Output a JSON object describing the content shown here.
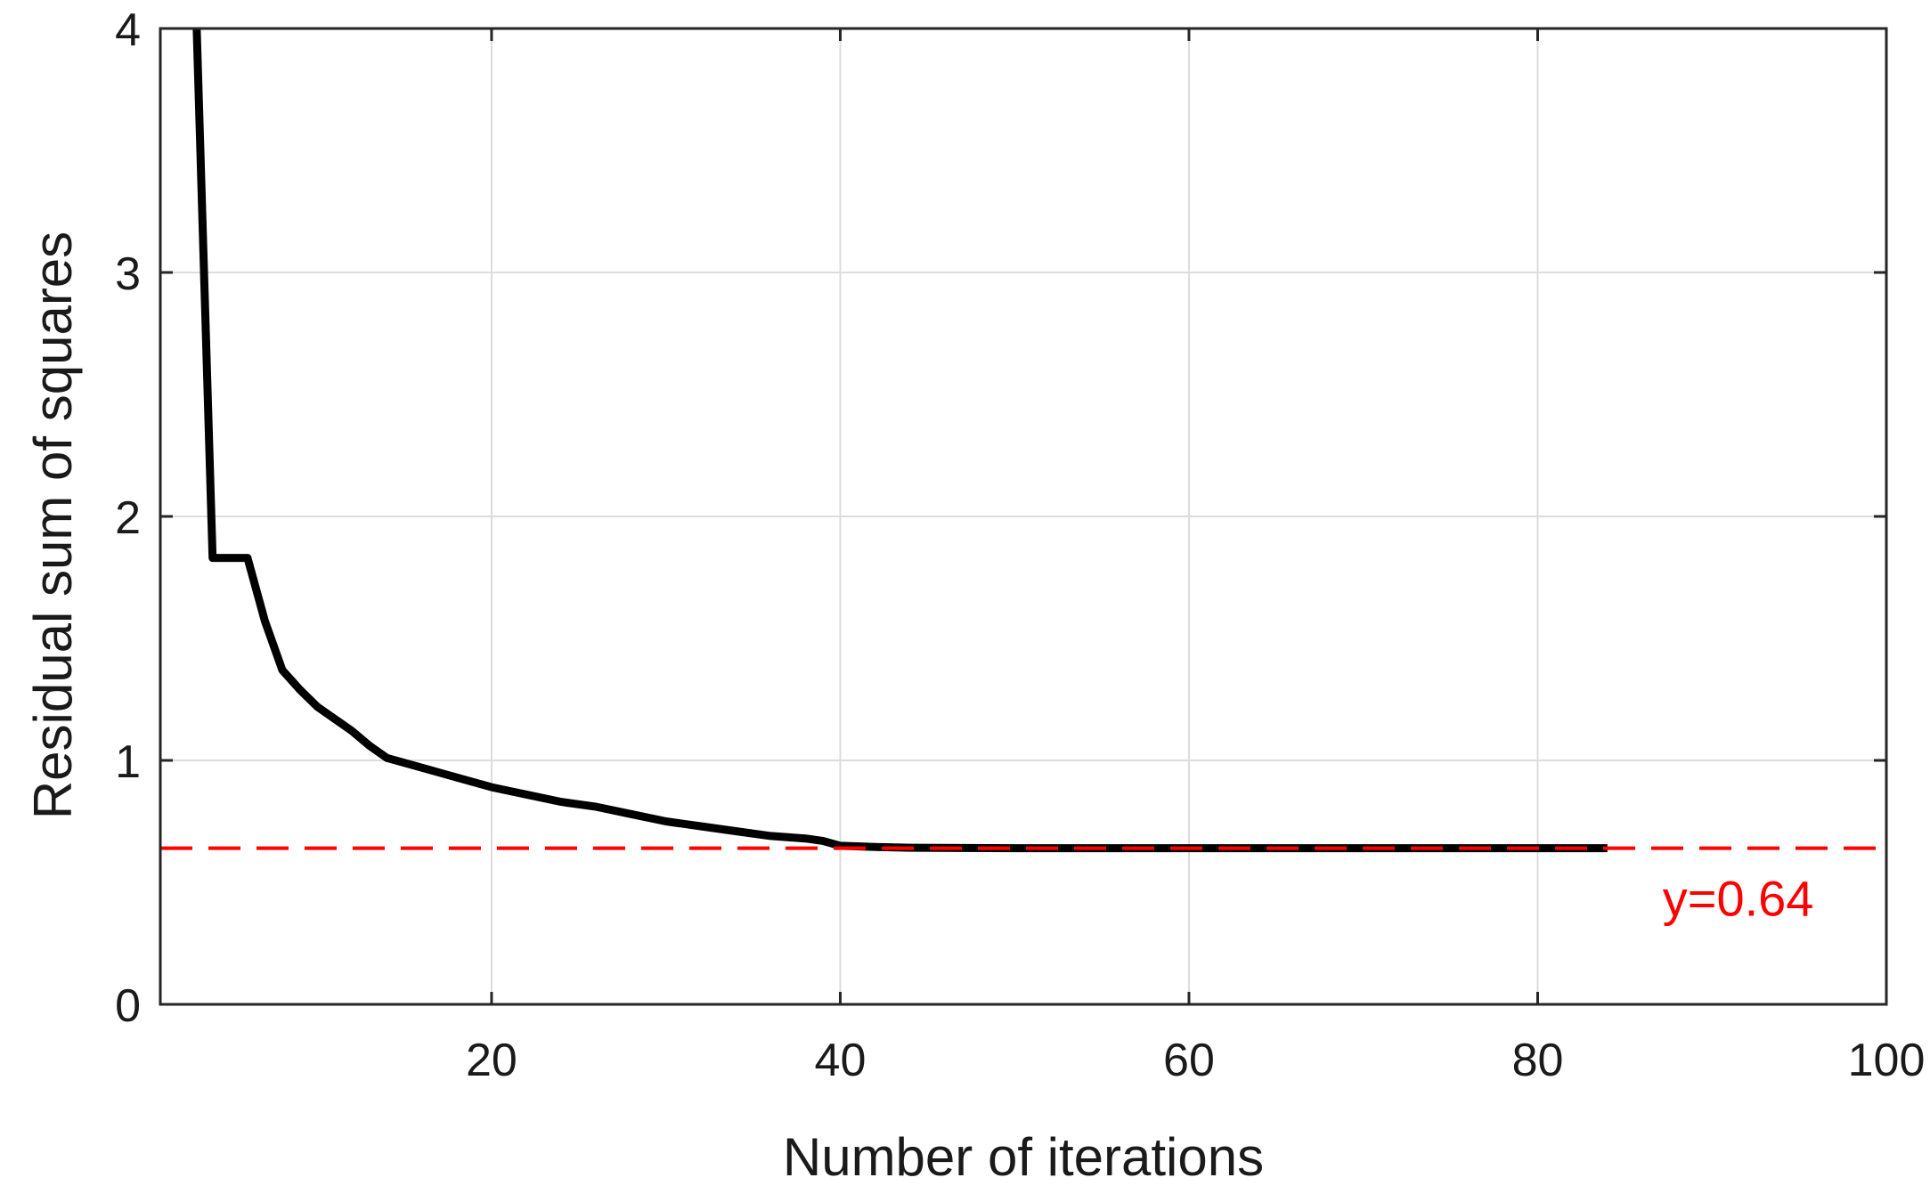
{
  "chart_data": {
    "type": "line",
    "title": "",
    "xlabel": "Number of iterations",
    "ylabel": "Residual sum of squares",
    "xlim": [
      1,
      100
    ],
    "ylim": [
      0,
      4
    ],
    "xticks": [
      20,
      40,
      60,
      80,
      100
    ],
    "yticks": [
      0,
      1,
      2,
      3,
      4
    ],
    "grid": true,
    "series": [
      {
        "color": "#000000",
        "x": [
          3,
          4,
          5,
          6,
          7,
          8,
          9,
          10,
          11,
          12,
          13,
          14,
          16,
          18,
          20,
          22,
          24,
          26,
          28,
          30,
          32,
          34,
          36,
          38,
          39,
          40,
          42,
          44,
          50,
          60,
          70,
          80,
          84
        ],
        "y": [
          4.2,
          1.83,
          1.83,
          1.83,
          1.57,
          1.37,
          1.29,
          1.22,
          1.17,
          1.12,
          1.06,
          1.01,
          0.97,
          0.93,
          0.89,
          0.86,
          0.83,
          0.81,
          0.78,
          0.75,
          0.73,
          0.71,
          0.69,
          0.68,
          0.67,
          0.65,
          0.645,
          0.642,
          0.64,
          0.64,
          0.64,
          0.64,
          0.64
        ]
      }
    ],
    "reference_line": {
      "y": 0.64,
      "label": "y=0.64",
      "color": "#ff0000",
      "style": "dashed"
    }
  }
}
